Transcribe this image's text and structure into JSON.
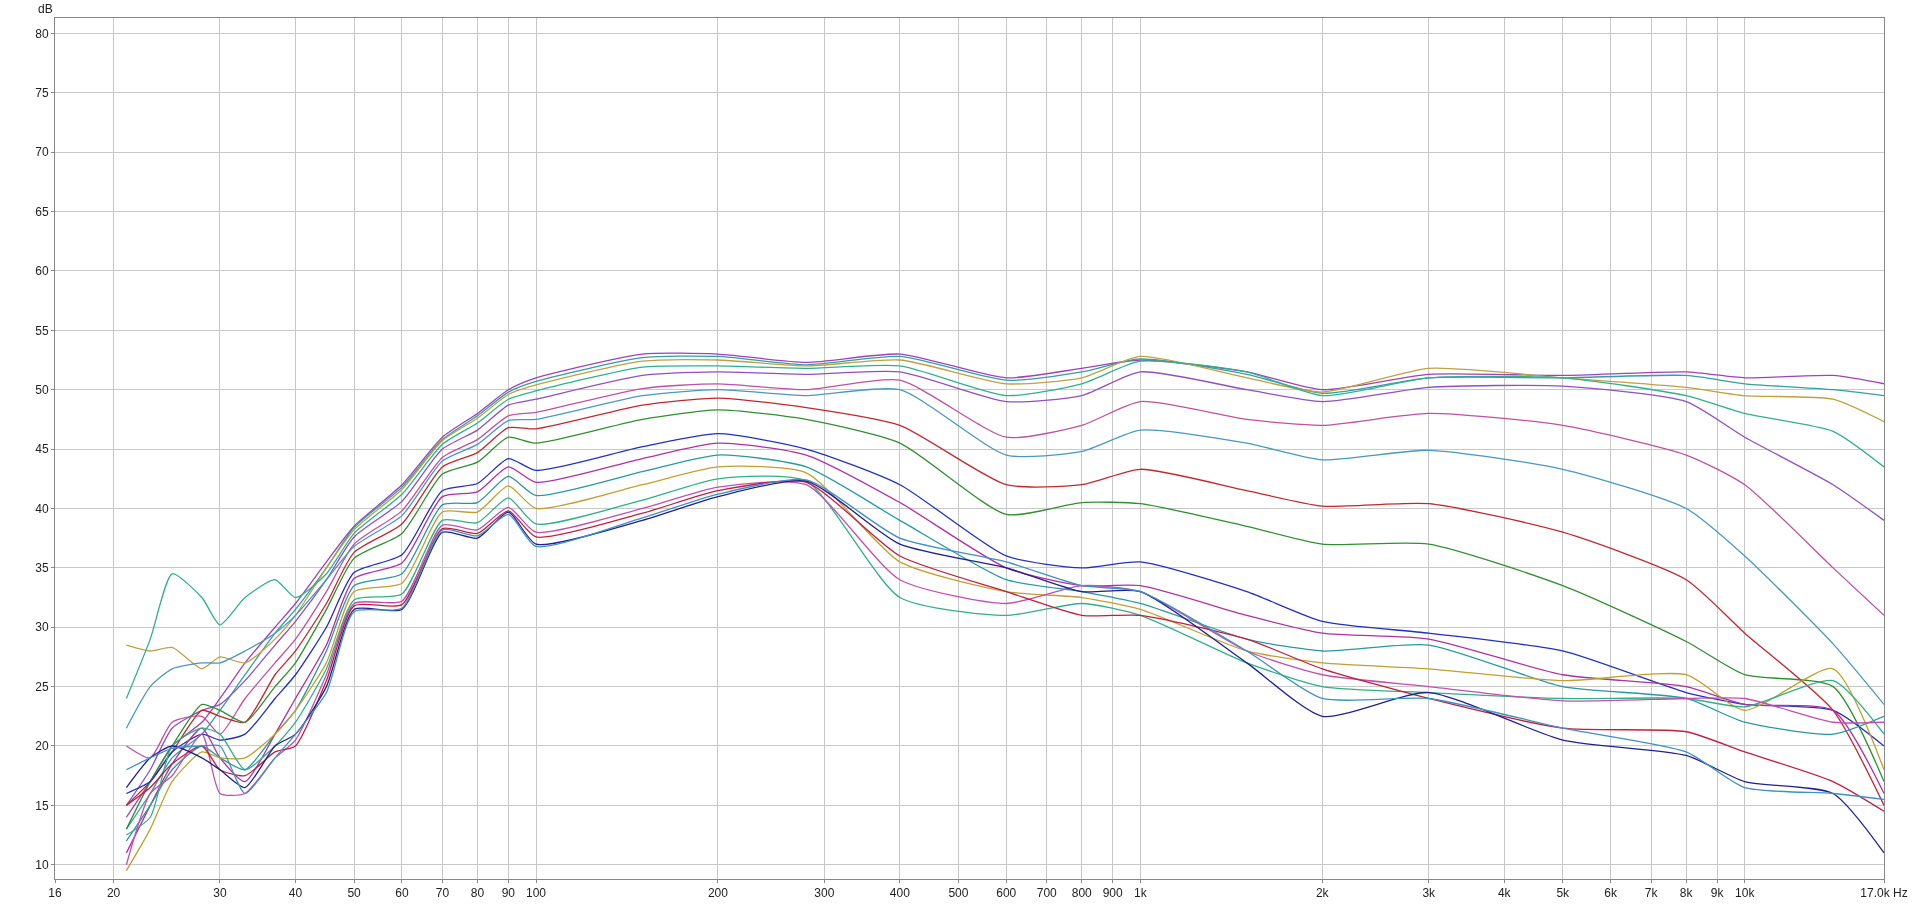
{
  "chart_data": {
    "type": "line",
    "ylabel": "dB",
    "grid": true,
    "log": "x",
    "xlim": [
      16,
      17000
    ],
    "ylim": [
      8.8,
      81.3
    ],
    "xticks": [
      16,
      20,
      30,
      40,
      50,
      60,
      70,
      80,
      90,
      100,
      200,
      300,
      400,
      500,
      600,
      700,
      800,
      900,
      {
        "value": 1000,
        "label": "1k"
      },
      {
        "value": 2000,
        "label": "2k"
      },
      {
        "value": 3000,
        "label": "3k"
      },
      {
        "value": 4000,
        "label": "4k"
      },
      {
        "value": 5000,
        "label": "5k"
      },
      {
        "value": 6000,
        "label": "6k"
      },
      {
        "value": 7000,
        "label": "7k"
      },
      {
        "value": 8000,
        "label": "8k"
      },
      {
        "value": 9000,
        "label": "9k"
      },
      {
        "value": 10000,
        "label": "10k"
      },
      {
        "value": 17000,
        "label": "17.0k Hz"
      }
    ],
    "yticks": [
      10,
      15,
      20,
      25,
      30,
      35,
      40,
      45,
      50,
      55,
      60,
      65,
      70,
      75,
      80
    ],
    "x": [
      21,
      23,
      25,
      28,
      30,
      33,
      37,
      40,
      45,
      50,
      60,
      70,
      80,
      90,
      100,
      150,
      200,
      280,
      400,
      600,
      800,
      1000,
      1500,
      2000,
      3000,
      5000,
      8000,
      10000,
      14000,
      17000
    ],
    "series": [
      {
        "color": "#a040c0",
        "values": [
          14,
          17,
          20,
          22,
          24,
          27,
          30,
          32,
          35.5,
          38.5,
          42,
          46,
          48,
          50,
          51,
          53,
          53,
          52.3,
          53,
          51,
          51.8,
          52.5,
          51.5,
          50,
          51.3,
          51.2,
          51.5,
          51,
          51.2,
          50.5
        ]
      },
      {
        "color": "#30a0a0",
        "values": [
          13,
          16,
          19,
          21,
          23,
          26,
          29.5,
          31.5,
          35,
          38.4,
          41.8,
          45.8,
          47.8,
          49.8,
          50.7,
          52.7,
          52.8,
          52.1,
          52.8,
          50.8,
          51.5,
          52.6,
          51.3,
          49.7,
          51,
          51,
          51.2,
          50.5,
          50,
          49.5
        ]
      },
      {
        "color": "#c0a040",
        "values": [
          28.5,
          28,
          28.3,
          26.5,
          27.5,
          27,
          29,
          31,
          35,
          38.2,
          41.6,
          45.7,
          47.6,
          49.6,
          50.4,
          52.4,
          52.5,
          52,
          52.5,
          50.5,
          51,
          52.8,
          51,
          49.8,
          51.8,
          51,
          50.2,
          49.5,
          49.2,
          47.3
        ]
      },
      {
        "color": "#30b090",
        "values": [
          24,
          29,
          34.5,
          32.5,
          30.2,
          32.5,
          34,
          32.5,
          34.5,
          37.9,
          41.2,
          45.4,
          47.2,
          49.2,
          49.9,
          51.9,
          52,
          51.8,
          52,
          49.5,
          50.5,
          52.4,
          51.5,
          49.5,
          51,
          51,
          49.5,
          48,
          46.5,
          43.5
        ]
      },
      {
        "color": "#9050c0",
        "values": [
          15,
          18,
          21.5,
          23,
          23.5,
          25.5,
          28.5,
          30.5,
          34,
          37.6,
          40.6,
          45,
          46.6,
          48.7,
          49.2,
          51.2,
          51.5,
          51.3,
          51.5,
          49,
          49.5,
          51.5,
          50,
          49,
          50.2,
          50.3,
          49,
          46,
          42,
          39
        ]
      },
      {
        "color": "#c050a0",
        "values": [
          20,
          19,
          22,
          22.5,
          21,
          24,
          27,
          29,
          33,
          37,
          39.8,
          44.3,
          45.8,
          47.8,
          48.1,
          50.1,
          50.5,
          50,
          50.8,
          46,
          47,
          49,
          47.5,
          47,
          48,
          47,
          44.5,
          42,
          35,
          31
        ]
      },
      {
        "color": "#4898c0",
        "values": [
          21.5,
          25,
          26.5,
          27,
          27,
          28,
          29.5,
          31,
          34,
          36.8,
          39.4,
          44,
          45.4,
          47.4,
          47.5,
          49.5,
          50,
          49.5,
          50,
          44.5,
          44.8,
          46.6,
          45.5,
          44.1,
          44.9,
          43.3,
          40,
          36,
          28.6,
          23.5
        ]
      },
      {
        "color": "#c02830",
        "values": [
          15,
          17,
          19.5,
          23,
          22.5,
          22,
          26,
          28,
          32,
          36.3,
          38.7,
          43.5,
          44.7,
          46.8,
          46.7,
          48.7,
          49.3,
          48.5,
          47,
          42,
          42,
          43.3,
          41.5,
          40.2,
          40.4,
          38,
          34,
          29.5,
          23,
          15
        ]
      },
      {
        "color": "#309030",
        "values": [
          13,
          17,
          20,
          23.5,
          23,
          22,
          25,
          27,
          31.5,
          35.8,
          37.9,
          42.9,
          43.9,
          46,
          45.5,
          47.5,
          48.3,
          47.5,
          45.5,
          39.5,
          40.5,
          40.4,
          38.5,
          37,
          37,
          33.5,
          28.8,
          26,
          25,
          17
        ]
      },
      {
        "color": "#2030c0",
        "values": [
          16,
          17,
          19.5,
          21,
          20.5,
          21,
          24,
          26,
          30,
          34.6,
          36.1,
          41.5,
          42.1,
          44.2,
          43.2,
          45.2,
          46.3,
          45,
          42,
          36,
          35,
          35.5,
          33,
          30.5,
          29.5,
          28,
          24.5,
          23.5,
          23,
          20
        ]
      },
      {
        "color": "#b030a0",
        "values": [
          11,
          15,
          18.5,
          21.5,
          19,
          17,
          21,
          24,
          28.5,
          34.1,
          35.4,
          41,
          41.4,
          43.5,
          42.2,
          44.2,
          45.5,
          44.5,
          40.5,
          35,
          33.5,
          33.5,
          31,
          29.5,
          29,
          26,
          25,
          23.5,
          23,
          16
        ]
      },
      {
        "color": "#2898a0",
        "values": [
          12,
          15,
          18,
          20,
          19,
          18,
          21,
          23,
          28,
          33.5,
          34.5,
          40.3,
          40.5,
          42.7,
          41.1,
          43.1,
          44.5,
          43.5,
          39,
          34,
          33,
          32,
          29,
          28,
          28.5,
          25,
          24,
          22,
          21,
          22.5
        ]
      },
      {
        "color": "#c0a030",
        "values": [
          9.5,
          13,
          17,
          19.5,
          19,
          19,
          21,
          23,
          27,
          33,
          33.7,
          39.7,
          39.7,
          41.9,
          40,
          42,
          43.5,
          43,
          35.5,
          33,
          32.5,
          31.5,
          28,
          27,
          26.5,
          25.5,
          26,
          23,
          26.5,
          18
        ]
      },
      {
        "color": "#30b088",
        "values": [
          12.5,
          14,
          20,
          21.5,
          21,
          18,
          20,
          22,
          26.5,
          32.3,
          32.8,
          39,
          38.8,
          40.9,
          38.7,
          40.7,
          42.5,
          42.3,
          32.5,
          31,
          32,
          31,
          27,
          25,
          24.5,
          24,
          24,
          23.3,
          25.5,
          21
        ]
      },
      {
        "color": "#c050b0",
        "values": [
          10,
          16,
          17.5,
          21,
          16,
          16,
          19,
          20.5,
          26,
          32,
          32.2,
          38.6,
          38.2,
          40.1,
          38,
          40,
          41.8,
          42,
          34,
          32,
          33.5,
          33,
          28,
          26,
          25,
          23.8,
          24,
          24,
          22,
          22
        ]
      },
      {
        "color": "#c02040",
        "values": [
          15,
          16.5,
          18.5,
          20,
          18,
          17.5,
          19.5,
          20,
          25.5,
          31.8,
          31.9,
          38.3,
          37.9,
          39.8,
          37.6,
          39.6,
          41.5,
          42.2,
          36,
          33,
          31,
          31,
          29,
          26.5,
          24,
          21.5,
          21.2,
          19.5,
          17,
          14.5
        ]
      },
      {
        "color": "#202090",
        "values": [
          16.5,
          19,
          20,
          19,
          18,
          16.5,
          20,
          21,
          25,
          31.5,
          31.5,
          38,
          37.5,
          39.7,
          37,
          39,
          41,
          42.3,
          37,
          35,
          33,
          33,
          27,
          22.5,
          24.5,
          20.5,
          19.2,
          17,
          16,
          11
        ]
      },
      {
        "color": "#4090c0",
        "values": [
          18,
          19,
          19.8,
          20,
          20,
          16,
          19,
          21,
          24.5,
          31.3,
          31.6,
          38.2,
          37.7,
          39.5,
          36.8,
          39.2,
          41.2,
          42.4,
          37.5,
          35.5,
          33.5,
          33,
          28,
          24,
          24,
          21.5,
          19.5,
          16.5,
          16,
          15.5
        ]
      }
    ]
  }
}
